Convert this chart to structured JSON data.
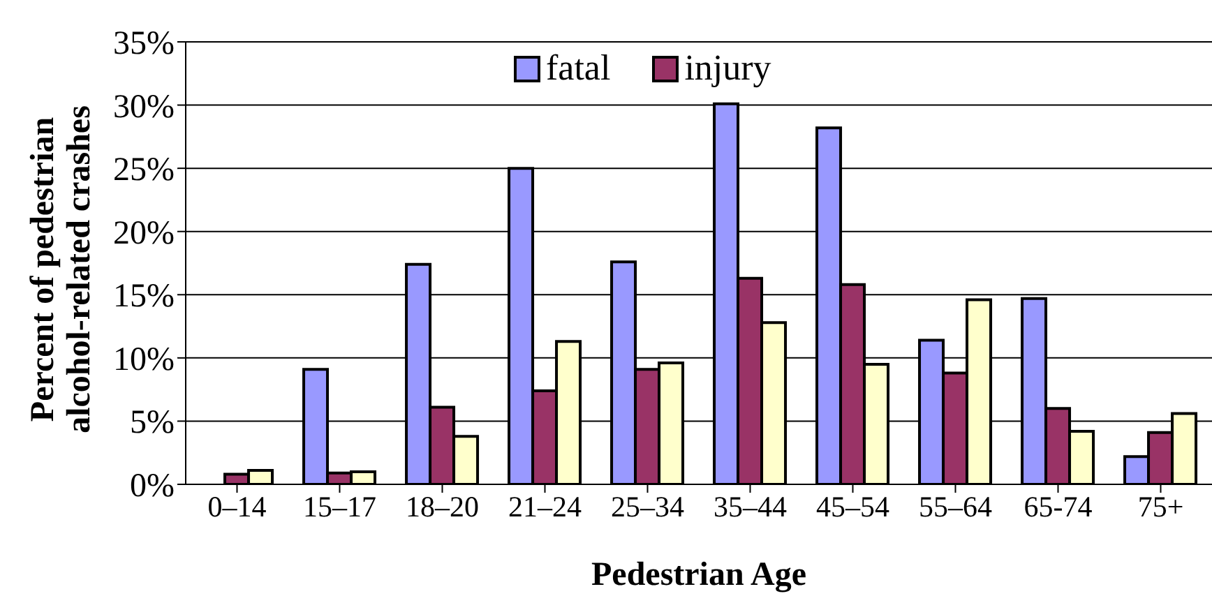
{
  "chart_data": {
    "type": "bar",
    "xlabel": "Pedestrian Age",
    "ylabel": "Percent of pedestrian alcohol-related crashes",
    "categories": [
      "0–14",
      "15–17",
      "18–20",
      "21–24",
      "25–34",
      "35–44",
      "45–54",
      "55–64",
      "65-74",
      "75+"
    ],
    "series": [
      {
        "name": "fatal",
        "color": "#9999ff",
        "values": [
          0,
          9.1,
          17.4,
          25.0,
          17.6,
          30.1,
          28.2,
          11.4,
          14.7,
          2.2
        ]
      },
      {
        "name": "injury",
        "color": "#993366",
        "values": [
          0.8,
          0.9,
          6.1,
          7.4,
          9.1,
          16.3,
          15.8,
          8.8,
          6.0,
          4.1
        ]
      },
      {
        "color": "#ffffcc",
        "values": [
          1.1,
          1.0,
          3.8,
          11.3,
          9.6,
          12.8,
          9.5,
          14.6,
          4.2,
          5.6
        ]
      }
    ],
    "ylim": [
      0,
      35
    ],
    "yticks": [
      {
        "value": 0,
        "label": "0%"
      },
      {
        "value": 5,
        "label": "5%"
      },
      {
        "value": 10,
        "label": "10%"
      },
      {
        "value": 15,
        "label": "15%"
      },
      {
        "value": 20,
        "label": "20%"
      },
      {
        "value": 25,
        "label": "25%"
      },
      {
        "value": 30,
        "label": "30%"
      },
      {
        "value": 35,
        "label": "35%"
      }
    ],
    "grid": "y",
    "legend": "top"
  }
}
